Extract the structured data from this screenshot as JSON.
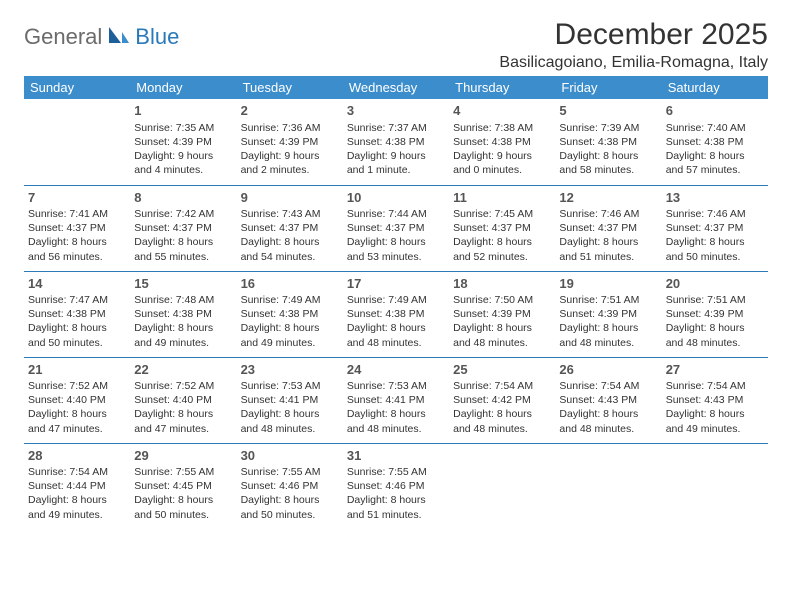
{
  "brand": {
    "part1": "General",
    "part2": "Blue"
  },
  "title": "December 2025",
  "location": "Basilicagoiano, Emilia-Romagna, Italy",
  "colors": {
    "header_bg": "#3c8dcc",
    "header_text": "#ffffff",
    "row_divider": "#2a7ab9",
    "body_text": "#333333",
    "brand_gray": "#6b6b6b",
    "brand_blue": "#2a7ab9"
  },
  "typography": {
    "title_fontsize": 30,
    "location_fontsize": 16,
    "weekday_fontsize": 13,
    "cell_fontsize": 10.5,
    "daynum_fontsize": 13
  },
  "weekdays": [
    "Sunday",
    "Monday",
    "Tuesday",
    "Wednesday",
    "Thursday",
    "Friday",
    "Saturday"
  ],
  "weeks": [
    [
      {},
      {
        "day": "1",
        "sunrise": "Sunrise: 7:35 AM",
        "sunset": "Sunset: 4:39 PM",
        "daylight": "Daylight: 9 hours and 4 minutes."
      },
      {
        "day": "2",
        "sunrise": "Sunrise: 7:36 AM",
        "sunset": "Sunset: 4:39 PM",
        "daylight": "Daylight: 9 hours and 2 minutes."
      },
      {
        "day": "3",
        "sunrise": "Sunrise: 7:37 AM",
        "sunset": "Sunset: 4:38 PM",
        "daylight": "Daylight: 9 hours and 1 minute."
      },
      {
        "day": "4",
        "sunrise": "Sunrise: 7:38 AM",
        "sunset": "Sunset: 4:38 PM",
        "daylight": "Daylight: 9 hours and 0 minutes."
      },
      {
        "day": "5",
        "sunrise": "Sunrise: 7:39 AM",
        "sunset": "Sunset: 4:38 PM",
        "daylight": "Daylight: 8 hours and 58 minutes."
      },
      {
        "day": "6",
        "sunrise": "Sunrise: 7:40 AM",
        "sunset": "Sunset: 4:38 PM",
        "daylight": "Daylight: 8 hours and 57 minutes."
      }
    ],
    [
      {
        "day": "7",
        "sunrise": "Sunrise: 7:41 AM",
        "sunset": "Sunset: 4:37 PM",
        "daylight": "Daylight: 8 hours and 56 minutes."
      },
      {
        "day": "8",
        "sunrise": "Sunrise: 7:42 AM",
        "sunset": "Sunset: 4:37 PM",
        "daylight": "Daylight: 8 hours and 55 minutes."
      },
      {
        "day": "9",
        "sunrise": "Sunrise: 7:43 AM",
        "sunset": "Sunset: 4:37 PM",
        "daylight": "Daylight: 8 hours and 54 minutes."
      },
      {
        "day": "10",
        "sunrise": "Sunrise: 7:44 AM",
        "sunset": "Sunset: 4:37 PM",
        "daylight": "Daylight: 8 hours and 53 minutes."
      },
      {
        "day": "11",
        "sunrise": "Sunrise: 7:45 AM",
        "sunset": "Sunset: 4:37 PM",
        "daylight": "Daylight: 8 hours and 52 minutes."
      },
      {
        "day": "12",
        "sunrise": "Sunrise: 7:46 AM",
        "sunset": "Sunset: 4:37 PM",
        "daylight": "Daylight: 8 hours and 51 minutes."
      },
      {
        "day": "13",
        "sunrise": "Sunrise: 7:46 AM",
        "sunset": "Sunset: 4:37 PM",
        "daylight": "Daylight: 8 hours and 50 minutes."
      }
    ],
    [
      {
        "day": "14",
        "sunrise": "Sunrise: 7:47 AM",
        "sunset": "Sunset: 4:38 PM",
        "daylight": "Daylight: 8 hours and 50 minutes."
      },
      {
        "day": "15",
        "sunrise": "Sunrise: 7:48 AM",
        "sunset": "Sunset: 4:38 PM",
        "daylight": "Daylight: 8 hours and 49 minutes."
      },
      {
        "day": "16",
        "sunrise": "Sunrise: 7:49 AM",
        "sunset": "Sunset: 4:38 PM",
        "daylight": "Daylight: 8 hours and 49 minutes."
      },
      {
        "day": "17",
        "sunrise": "Sunrise: 7:49 AM",
        "sunset": "Sunset: 4:38 PM",
        "daylight": "Daylight: 8 hours and 48 minutes."
      },
      {
        "day": "18",
        "sunrise": "Sunrise: 7:50 AM",
        "sunset": "Sunset: 4:39 PM",
        "daylight": "Daylight: 8 hours and 48 minutes."
      },
      {
        "day": "19",
        "sunrise": "Sunrise: 7:51 AM",
        "sunset": "Sunset: 4:39 PM",
        "daylight": "Daylight: 8 hours and 48 minutes."
      },
      {
        "day": "20",
        "sunrise": "Sunrise: 7:51 AM",
        "sunset": "Sunset: 4:39 PM",
        "daylight": "Daylight: 8 hours and 48 minutes."
      }
    ],
    [
      {
        "day": "21",
        "sunrise": "Sunrise: 7:52 AM",
        "sunset": "Sunset: 4:40 PM",
        "daylight": "Daylight: 8 hours and 47 minutes."
      },
      {
        "day": "22",
        "sunrise": "Sunrise: 7:52 AM",
        "sunset": "Sunset: 4:40 PM",
        "daylight": "Daylight: 8 hours and 47 minutes."
      },
      {
        "day": "23",
        "sunrise": "Sunrise: 7:53 AM",
        "sunset": "Sunset: 4:41 PM",
        "daylight": "Daylight: 8 hours and 48 minutes."
      },
      {
        "day": "24",
        "sunrise": "Sunrise: 7:53 AM",
        "sunset": "Sunset: 4:41 PM",
        "daylight": "Daylight: 8 hours and 48 minutes."
      },
      {
        "day": "25",
        "sunrise": "Sunrise: 7:54 AM",
        "sunset": "Sunset: 4:42 PM",
        "daylight": "Daylight: 8 hours and 48 minutes."
      },
      {
        "day": "26",
        "sunrise": "Sunrise: 7:54 AM",
        "sunset": "Sunset: 4:43 PM",
        "daylight": "Daylight: 8 hours and 48 minutes."
      },
      {
        "day": "27",
        "sunrise": "Sunrise: 7:54 AM",
        "sunset": "Sunset: 4:43 PM",
        "daylight": "Daylight: 8 hours and 49 minutes."
      }
    ],
    [
      {
        "day": "28",
        "sunrise": "Sunrise: 7:54 AM",
        "sunset": "Sunset: 4:44 PM",
        "daylight": "Daylight: 8 hours and 49 minutes."
      },
      {
        "day": "29",
        "sunrise": "Sunrise: 7:55 AM",
        "sunset": "Sunset: 4:45 PM",
        "daylight": "Daylight: 8 hours and 50 minutes."
      },
      {
        "day": "30",
        "sunrise": "Sunrise: 7:55 AM",
        "sunset": "Sunset: 4:46 PM",
        "daylight": "Daylight: 8 hours and 50 minutes."
      },
      {
        "day": "31",
        "sunrise": "Sunrise: 7:55 AM",
        "sunset": "Sunset: 4:46 PM",
        "daylight": "Daylight: 8 hours and 51 minutes."
      },
      {},
      {},
      {}
    ]
  ]
}
